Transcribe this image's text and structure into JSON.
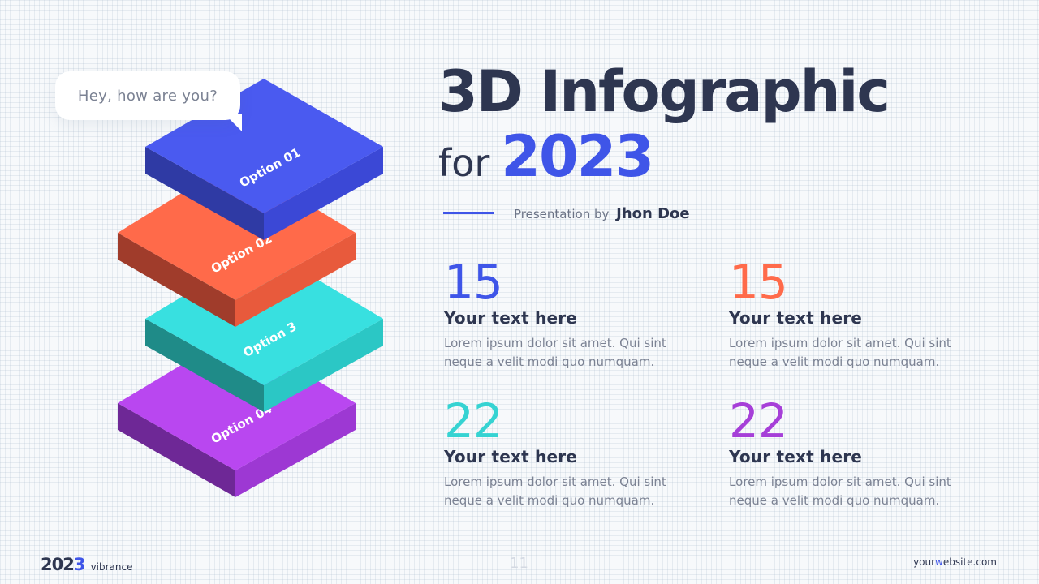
{
  "bubble": {
    "text": "Hey, how are you?"
  },
  "title": {
    "line1": "3D Infographic",
    "line2_prefix": "for",
    "line2_year": "2023"
  },
  "byline": {
    "prefix": "Presentation by",
    "name": "Jhon Doe"
  },
  "layers": [
    {
      "label": "Option 01",
      "top": "#4a5af0",
      "left": "#2f3aa4",
      "right": "#3b48d6"
    },
    {
      "label": "Option 02",
      "top": "#ff6a4a",
      "left": "#a03c2b",
      "right": "#e85a3c"
    },
    {
      "label": "Option 3",
      "top": "#38e0e0",
      "left": "#1f8b88",
      "right": "#2bc7c5"
    },
    {
      "label": "Option 04",
      "top": "#b947f0",
      "left": "#6e2896",
      "right": "#9d38d3"
    }
  ],
  "stats": [
    {
      "number": "15",
      "color": "#3f55e8",
      "heading": "Your text here",
      "body": "Lorem ipsum dolor sit amet. Qui sint neque a velit modi quo numquam."
    },
    {
      "number": "15",
      "color": "#ff6a4a",
      "heading": "Your text here",
      "body": "Lorem ipsum dolor sit amet. Qui sint neque a velit modi quo numquam."
    },
    {
      "number": "22",
      "color": "#36d3d2",
      "heading": "Your text here",
      "body": "Lorem ipsum dolor sit amet. Qui sint neque a velit modi quo numquam."
    },
    {
      "number": "22",
      "color": "#a63fd8",
      "heading": "Your text here",
      "body": "Lorem ipsum dolor sit amet. Qui sint neque a velit modi quo numquam."
    }
  ],
  "footer": {
    "logo_year_a": "202",
    "logo_year_b": "3",
    "logo_brand": "vibrance",
    "page_number": "11",
    "website_a": "your",
    "website_b": "w",
    "website_c": "ebsite.com"
  },
  "colors": {
    "dark": "#2e3650",
    "accent": "#3f55e8",
    "muted": "#7b8293"
  }
}
